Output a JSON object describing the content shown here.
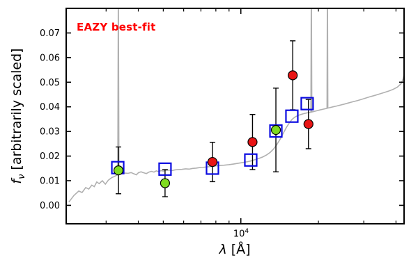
{
  "chart_data": {
    "type": "line+scatter",
    "title": "",
    "annotation": {
      "text": "EAZY best-fit",
      "color": "#ff0000"
    },
    "xlabel": {
      "symbol": "λ",
      "rest": " [Å]"
    },
    "ylabel": {
      "symbol": "f",
      "subscript": "ν",
      "rest": " [arbitrarily scaled]"
    },
    "xscale": "log",
    "xlim": [
      2100,
      43000
    ],
    "ylim": [
      -0.0075,
      0.08
    ],
    "grid": false,
    "yticks": [
      0.0,
      0.01,
      0.02,
      0.03,
      0.04,
      0.05,
      0.06,
      0.07
    ],
    "ytick_labels": [
      "0.00",
      "0.01",
      "0.02",
      "0.03",
      "0.04",
      "0.05",
      "0.06",
      "0.07"
    ],
    "xtick_major": [
      10000
    ],
    "xtick_label": {
      "base": "10",
      "exp": "4"
    },
    "xtick_minor": [
      3000,
      4000,
      5000,
      6000,
      7000,
      8000,
      9000,
      20000,
      30000,
      40000
    ],
    "colors": {
      "spectrum": "#b0b0b0",
      "model_square": "#0a0ae0",
      "observed_red": "#e81414",
      "observed_green": "#7fdb1f",
      "errorbar": "#000000",
      "axes": "#000000"
    },
    "series": [
      {
        "name": "model-spectrum",
        "type": "line",
        "lambda": [
          2150,
          2250,
          2350,
          2420,
          2500,
          2570,
          2640,
          2700,
          2760,
          2820,
          2900,
          2980,
          3060,
          3150,
          3240,
          3330,
          3347,
          3365,
          3450,
          3550,
          3650,
          3750,
          3850,
          3930,
          4010,
          4100,
          4200,
          4300,
          4400,
          4500,
          4600,
          4700,
          4800,
          4900,
          5000,
          5100,
          5250,
          5400,
          5550,
          5700,
          5900,
          6100,
          6300,
          6500,
          6700,
          6900,
          7100,
          7400,
          7700,
          8000,
          8300,
          8600,
          9000,
          9400,
          9800,
          10200,
          10600,
          11000,
          11400,
          11800,
          12200,
          12600,
          13000,
          13400,
          13800,
          14200,
          14600,
          15000,
          15400,
          15800,
          16200,
          16600,
          17000,
          17500,
          18000,
          18400,
          18700,
          18780,
          18860,
          19200,
          19700,
          20200,
          20800,
          21400,
          21600,
          21680,
          21760,
          22200,
          22800,
          23500,
          24300,
          25200,
          26200,
          27300,
          28500,
          30000,
          31500,
          33000,
          34500,
          36000,
          37500,
          39000,
          40500,
          41800,
          42600,
          43000
        ],
        "flux": [
          0.0013,
          0.004,
          0.0058,
          0.0052,
          0.0072,
          0.0066,
          0.0082,
          0.0076,
          0.0095,
          0.0088,
          0.01,
          0.0086,
          0.0102,
          0.0112,
          0.0118,
          0.0124,
          0.092,
          0.0126,
          0.0128,
          0.0131,
          0.013,
          0.0133,
          0.0128,
          0.0124,
          0.0133,
          0.0136,
          0.0132,
          0.0129,
          0.0135,
          0.0138,
          0.0135,
          0.014,
          0.0137,
          0.0141,
          0.0139,
          0.0142,
          0.0143,
          0.0141,
          0.0144,
          0.0145,
          0.0146,
          0.0148,
          0.0147,
          0.015,
          0.0151,
          0.0153,
          0.0154,
          0.0156,
          0.0158,
          0.016,
          0.0162,
          0.0163,
          0.0165,
          0.0168,
          0.0171,
          0.0174,
          0.0177,
          0.0181,
          0.0186,
          0.0191,
          0.0197,
          0.0205,
          0.0215,
          0.0229,
          0.0247,
          0.0268,
          0.0292,
          0.0315,
          0.0334,
          0.0349,
          0.0358,
          0.0364,
          0.0368,
          0.0372,
          0.0375,
          0.0377,
          0.0378,
          0.095,
          0.0379,
          0.0381,
          0.0384,
          0.0387,
          0.039,
          0.0393,
          0.0394,
          0.095,
          0.0395,
          0.0397,
          0.04,
          0.0403,
          0.0407,
          0.0411,
          0.0416,
          0.0421,
          0.0426,
          0.0433,
          0.044,
          0.0446,
          0.0452,
          0.0458,
          0.0464,
          0.0471,
          0.048,
          0.0493,
          0.0512,
          0.053
        ]
      },
      {
        "name": "model-photometry",
        "type": "scatter-open-square",
        "lambda": [
          3330,
          5080,
          7760,
          10930,
          13680,
          15780,
          18090
        ],
        "flux": [
          0.0153,
          0.0147,
          0.0151,
          0.0184,
          0.0302,
          0.0362,
          0.0413
        ]
      },
      {
        "name": "observed-photometry-red",
        "type": "scatter-circle",
        "lambda": [
          7760,
          11100,
          15900,
          18300
        ],
        "flux": [
          0.0176,
          0.0257,
          0.0528,
          0.033
        ],
        "err": [
          0.008,
          0.0112,
          0.014,
          0.01
        ]
      },
      {
        "name": "observed-photometry-green",
        "type": "scatter-circle",
        "lambda": [
          3350,
          5080,
          13680
        ],
        "flux": [
          0.0142,
          0.009,
          0.0306
        ],
        "err": [
          0.0095,
          0.0055,
          0.017
        ]
      }
    ]
  }
}
